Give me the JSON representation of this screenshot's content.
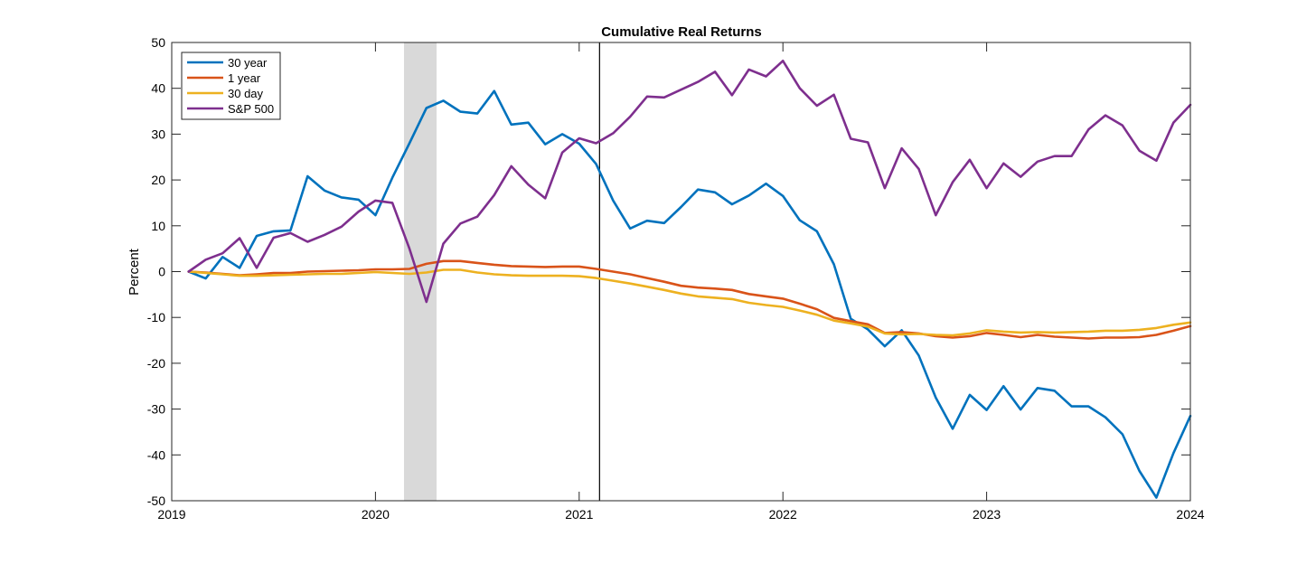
{
  "chart_data": {
    "type": "line",
    "title": "Cumulative Real Returns",
    "xlabel": "",
    "ylabel": "Percent",
    "xlim": [
      2019,
      2024
    ],
    "ylim": [
      -50,
      50
    ],
    "xticks": [
      2019,
      2020,
      2021,
      2022,
      2023,
      2024
    ],
    "xtick_labels": [
      "2019",
      "2020",
      "2021",
      "2022",
      "2023",
      "2024"
    ],
    "yticks": [
      -50,
      -40,
      -30,
      -20,
      -10,
      0,
      10,
      20,
      30,
      40,
      50
    ],
    "ytick_labels": [
      "-50",
      "-40",
      "-30",
      "-20",
      "-10",
      "0",
      "10",
      "20",
      "30",
      "40",
      "50"
    ],
    "grid": false,
    "legend_position": "top-left",
    "shaded_region": {
      "x_start": 2020.14,
      "x_end": 2020.3,
      "color": "#d9d9d9"
    },
    "vertical_line": {
      "x": 2021.1,
      "color": "#000000"
    },
    "x": [
      2019.083,
      2019.167,
      2019.25,
      2019.333,
      2019.417,
      2019.5,
      2019.583,
      2019.667,
      2019.75,
      2019.833,
      2019.917,
      2020.0,
      2020.083,
      2020.167,
      2020.25,
      2020.333,
      2020.417,
      2020.5,
      2020.583,
      2020.667,
      2020.75,
      2020.833,
      2020.917,
      2021.0,
      2021.083,
      2021.167,
      2021.25,
      2021.333,
      2021.417,
      2021.5,
      2021.583,
      2021.667,
      2021.75,
      2021.833,
      2021.917,
      2022.0,
      2022.083,
      2022.167,
      2022.25,
      2022.333,
      2022.417,
      2022.5,
      2022.583,
      2022.667,
      2022.75,
      2022.833,
      2022.917,
      2023.0,
      2023.083,
      2023.167,
      2023.25,
      2023.333,
      2023.417,
      2023.5,
      2023.583,
      2023.667,
      2023.75,
      2023.833,
      2023.917,
      2024.0
    ],
    "series": [
      {
        "name": "30 year",
        "color": "#0072BD",
        "values": [
          0,
          -1.5,
          3.2,
          0.8,
          7.8,
          8.8,
          9.0,
          20.8,
          17.7,
          16.2,
          15.7,
          12.3,
          20.5,
          28.0,
          35.7,
          37.3,
          34.9,
          34.5,
          39.4,
          32.1,
          32.5,
          27.8,
          30.0,
          27.9,
          23.5,
          15.5,
          9.4,
          11.1,
          10.6,
          14.1,
          17.9,
          17.3,
          14.7,
          16.6,
          19.2,
          16.5,
          11.2,
          8.8,
          1.6,
          -10.3,
          -12.6,
          -16.3,
          -12.8,
          -18.3,
          -27.5,
          -34.3,
          -26.9,
          -30.2,
          -25.0,
          -30.1,
          -25.4,
          -26.0,
          -29.4,
          -29.4,
          -31.8,
          -35.5,
          -43.5,
          -49.3,
          -39.6,
          -31.5
        ]
      },
      {
        "name": "1 year",
        "color": "#D95319",
        "values": [
          0,
          -0.2,
          -0.5,
          -0.8,
          -0.6,
          -0.3,
          -0.3,
          0.0,
          0.1,
          0.2,
          0.3,
          0.5,
          0.5,
          0.6,
          1.7,
          2.3,
          2.3,
          1.9,
          1.5,
          1.2,
          1.1,
          1.0,
          1.1,
          1.1,
          0.6,
          0.0,
          -0.6,
          -1.4,
          -2.2,
          -3.1,
          -3.5,
          -3.7,
          -4.0,
          -4.9,
          -5.4,
          -5.9,
          -7.0,
          -8.2,
          -10.1,
          -10.8,
          -11.5,
          -13.4,
          -13.2,
          -13.5,
          -14.1,
          -14.4,
          -14.1,
          -13.4,
          -13.8,
          -14.3,
          -13.8,
          -14.2,
          -14.4,
          -14.6,
          -14.4,
          -14.4,
          -14.3,
          -13.8,
          -12.9,
          -11.9
        ]
      },
      {
        "name": "30 day",
        "color": "#EDB120",
        "values": [
          0,
          -0.3,
          -0.6,
          -0.9,
          -0.9,
          -0.8,
          -0.7,
          -0.6,
          -0.5,
          -0.5,
          -0.3,
          -0.1,
          -0.3,
          -0.5,
          -0.2,
          0.4,
          0.4,
          -0.2,
          -0.6,
          -0.8,
          -0.9,
          -0.9,
          -0.9,
          -1.0,
          -1.4,
          -2.0,
          -2.6,
          -3.3,
          -4.0,
          -4.8,
          -5.4,
          -5.7,
          -6.0,
          -6.8,
          -7.3,
          -7.7,
          -8.5,
          -9.4,
          -10.7,
          -11.3,
          -12.0,
          -13.5,
          -13.7,
          -13.6,
          -13.8,
          -13.9,
          -13.5,
          -12.8,
          -13.1,
          -13.3,
          -13.2,
          -13.3,
          -13.2,
          -13.1,
          -12.9,
          -12.9,
          -12.7,
          -12.3,
          -11.6,
          -11.1
        ]
      },
      {
        "name": "S&P 500",
        "color": "#7E2F8E",
        "values": [
          0,
          2.6,
          4.0,
          7.3,
          0.8,
          7.4,
          8.4,
          6.5,
          8.0,
          9.8,
          13.1,
          15.5,
          15.0,
          5.0,
          -6.6,
          6.1,
          10.5,
          12.0,
          16.7,
          23.0,
          19.0,
          16.0,
          26.0,
          29.1,
          28.0,
          30.2,
          33.8,
          38.2,
          38.0,
          39.7,
          41.4,
          43.6,
          38.5,
          44.1,
          42.6,
          46.0,
          40.0,
          36.2,
          38.6,
          29.0,
          28.2,
          18.2,
          26.9,
          22.4,
          12.3,
          19.5,
          24.4,
          18.2,
          23.6,
          20.7,
          24.0,
          25.2,
          25.2,
          31.0,
          34.1,
          31.9,
          26.4,
          24.2,
          32.5,
          36.4
        ]
      }
    ]
  }
}
